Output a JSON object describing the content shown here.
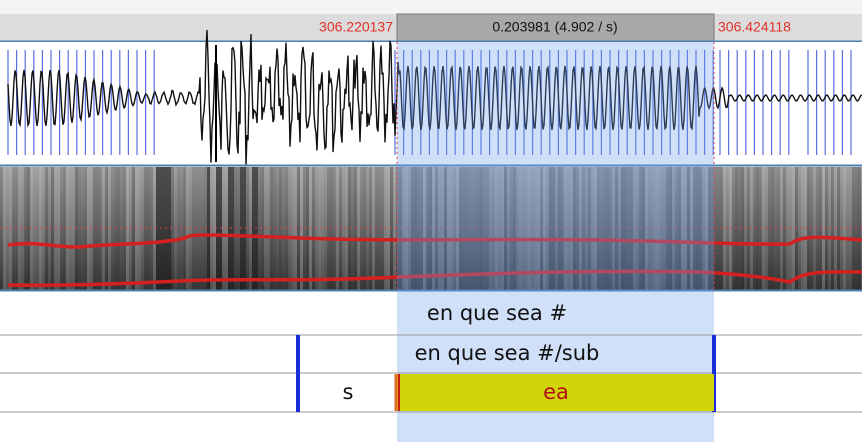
{
  "header": {
    "start": "306.220137",
    "duration": "0.203981 (4.902 / s)",
    "end": "306.424118"
  },
  "tiers": [
    {
      "intervals": [
        "en que sea #"
      ]
    },
    {
      "intervals": [
        "en que sea #/sub"
      ]
    },
    {
      "intervals": [
        "s",
        "ea"
      ]
    }
  ]
}
